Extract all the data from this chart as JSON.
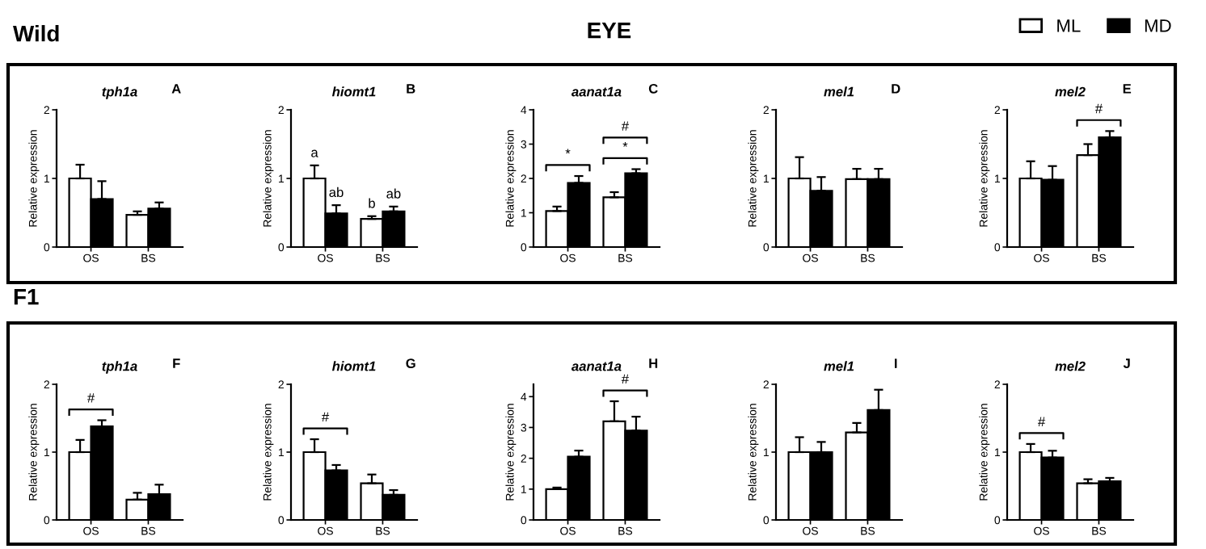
{
  "chart_data": [
    {
      "type": "bar",
      "title": "tph1a",
      "ylabel": "Relative expression",
      "categories": [
        "OS",
        "BS"
      ],
      "ylim": [
        0,
        2
      ],
      "yticks": [
        0,
        1,
        2
      ],
      "legend": "top right",
      "annotations": [
        "A",
        "Wild"
      ],
      "series": [
        {
          "name": "ML",
          "color": "#ffffff",
          "values": [
            1.0,
            0.47
          ],
          "errors": [
            0.2,
            0.05
          ]
        },
        {
          "name": "MD",
          "color": "#000000",
          "values": [
            0.7,
            0.56
          ],
          "errors": [
            0.26,
            0.09
          ]
        }
      ]
    },
    {
      "type": "bar",
      "title": "hiomt1",
      "ylabel": "Relative expression",
      "categories": [
        "OS",
        "BS"
      ],
      "ylim": [
        0,
        2
      ],
      "yticks": [
        0,
        1,
        2
      ],
      "annotations": [
        "B"
      ],
      "series": [
        {
          "color": "#ffffff",
          "values": [
            1.0,
            0.41
          ],
          "errors": [
            0.19,
            0.04
          ],
          "value_labels": [
            "a",
            "b"
          ]
        },
        {
          "color": "#000000",
          "values": [
            0.49,
            0.52
          ],
          "errors": [
            0.12,
            0.07
          ],
          "value_labels": [
            "ab",
            "ab"
          ]
        }
      ]
    },
    {
      "type": "bar",
      "title": "aanat1a",
      "ylabel": "Relative expression",
      "categories": [
        "OS",
        "BS"
      ],
      "ylim": [
        0,
        4
      ],
      "yticks": [
        0,
        1,
        2,
        3,
        4
      ],
      "annotations": [
        "C",
        "EYE",
        "*",
        "*",
        "#"
      ],
      "series": [
        {
          "color": "#ffffff",
          "values": [
            1.05,
            1.45
          ],
          "errors": [
            0.13,
            0.15
          ]
        },
        {
          "color": "#000000",
          "values": [
            1.87,
            2.15
          ],
          "errors": [
            0.2,
            0.12
          ]
        }
      ]
    },
    {
      "type": "bar",
      "title": "mel1",
      "ylabel": "Relative expression",
      "categories": [
        "OS",
        "BS"
      ],
      "ylim": [
        0,
        2
      ],
      "yticks": [
        0,
        1,
        2
      ],
      "annotations": [
        "D"
      ],
      "series": [
        {
          "color": "#ffffff",
          "values": [
            1.0,
            0.99
          ],
          "errors": [
            0.31,
            0.15
          ]
        },
        {
          "color": "#000000",
          "values": [
            0.82,
            0.99
          ],
          "errors": [
            0.2,
            0.15
          ]
        }
      ]
    },
    {
      "type": "bar",
      "title": "mel2",
      "ylabel": "Relative expression",
      "categories": [
        "OS",
        "BS"
      ],
      "ylim": [
        0,
        2
      ],
      "yticks": [
        0,
        1,
        2
      ],
      "annotations": [
        "E",
        "#"
      ],
      "series": [
        {
          "color": "#ffffff",
          "values": [
            1.0,
            1.34
          ],
          "errors": [
            0.25,
            0.16
          ]
        },
        {
          "color": "#000000",
          "values": [
            0.98,
            1.6
          ],
          "errors": [
            0.2,
            0.09
          ]
        }
      ]
    },
    {
      "type": "bar",
      "title": "tph1a",
      "ylabel": "Relative expression",
      "categories": [
        "OS",
        "BS"
      ],
      "ylim": [
        0,
        2
      ],
      "yticks": [
        0,
        1,
        2
      ],
      "annotations": [
        "F",
        "F1",
        "#"
      ],
      "series": [
        {
          "color": "#ffffff",
          "values": [
            1.0,
            0.3
          ],
          "errors": [
            0.18,
            0.1
          ]
        },
        {
          "color": "#000000",
          "values": [
            1.38,
            0.38
          ],
          "errors": [
            0.09,
            0.14
          ]
        }
      ]
    },
    {
      "type": "bar",
      "title": "hiomt1",
      "ylabel": "Relative expression",
      "categories": [
        "OS",
        "BS"
      ],
      "ylim": [
        0,
        2
      ],
      "yticks": [
        0,
        1,
        2
      ],
      "annotations": [
        "G",
        "#"
      ],
      "series": [
        {
          "color": "#ffffff",
          "values": [
            1.0,
            0.54
          ],
          "errors": [
            0.19,
            0.13
          ]
        },
        {
          "color": "#000000",
          "values": [
            0.73,
            0.37
          ],
          "errors": [
            0.08,
            0.07
          ]
        }
      ]
    },
    {
      "type": "bar",
      "title": "aanat1a",
      "ylabel": "Relative expression",
      "categories": [
        "OS",
        "BS"
      ],
      "ylim": [
        0,
        4.4
      ],
      "yticks": [
        0,
        1,
        2,
        3,
        4
      ],
      "annotations": [
        "H",
        "#"
      ],
      "series": [
        {
          "color": "#ffffff",
          "values": [
            1.0,
            3.2
          ],
          "errors": [
            0.05,
            0.65
          ]
        },
        {
          "color": "#000000",
          "values": [
            2.05,
            2.9
          ],
          "errors": [
            0.2,
            0.45
          ]
        }
      ]
    },
    {
      "type": "bar",
      "title": "mel1",
      "ylabel": "Relative expression",
      "categories": [
        "OS",
        "BS"
      ],
      "ylim": [
        0,
        2
      ],
      "yticks": [
        0,
        1,
        2
      ],
      "annotations": [
        "I"
      ],
      "series": [
        {
          "color": "#ffffff",
          "values": [
            1.0,
            1.29
          ],
          "errors": [
            0.22,
            0.14
          ]
        },
        {
          "color": "#000000",
          "values": [
            1.0,
            1.62
          ],
          "errors": [
            0.15,
            0.3
          ]
        }
      ]
    },
    {
      "type": "bar",
      "title": "mel2",
      "ylabel": "Relative expression",
      "categories": [
        "OS",
        "BS"
      ],
      "ylim": [
        0,
        2
      ],
      "yticks": [
        0,
        1,
        2
      ],
      "annotations": [
        "J",
        "#"
      ],
      "series": [
        {
          "color": "#ffffff",
          "values": [
            1.0,
            0.54
          ],
          "errors": [
            0.12,
            0.06
          ]
        },
        {
          "color": "#000000",
          "values": [
            0.92,
            0.57
          ],
          "errors": [
            0.1,
            0.05
          ]
        }
      ]
    }
  ]
}
